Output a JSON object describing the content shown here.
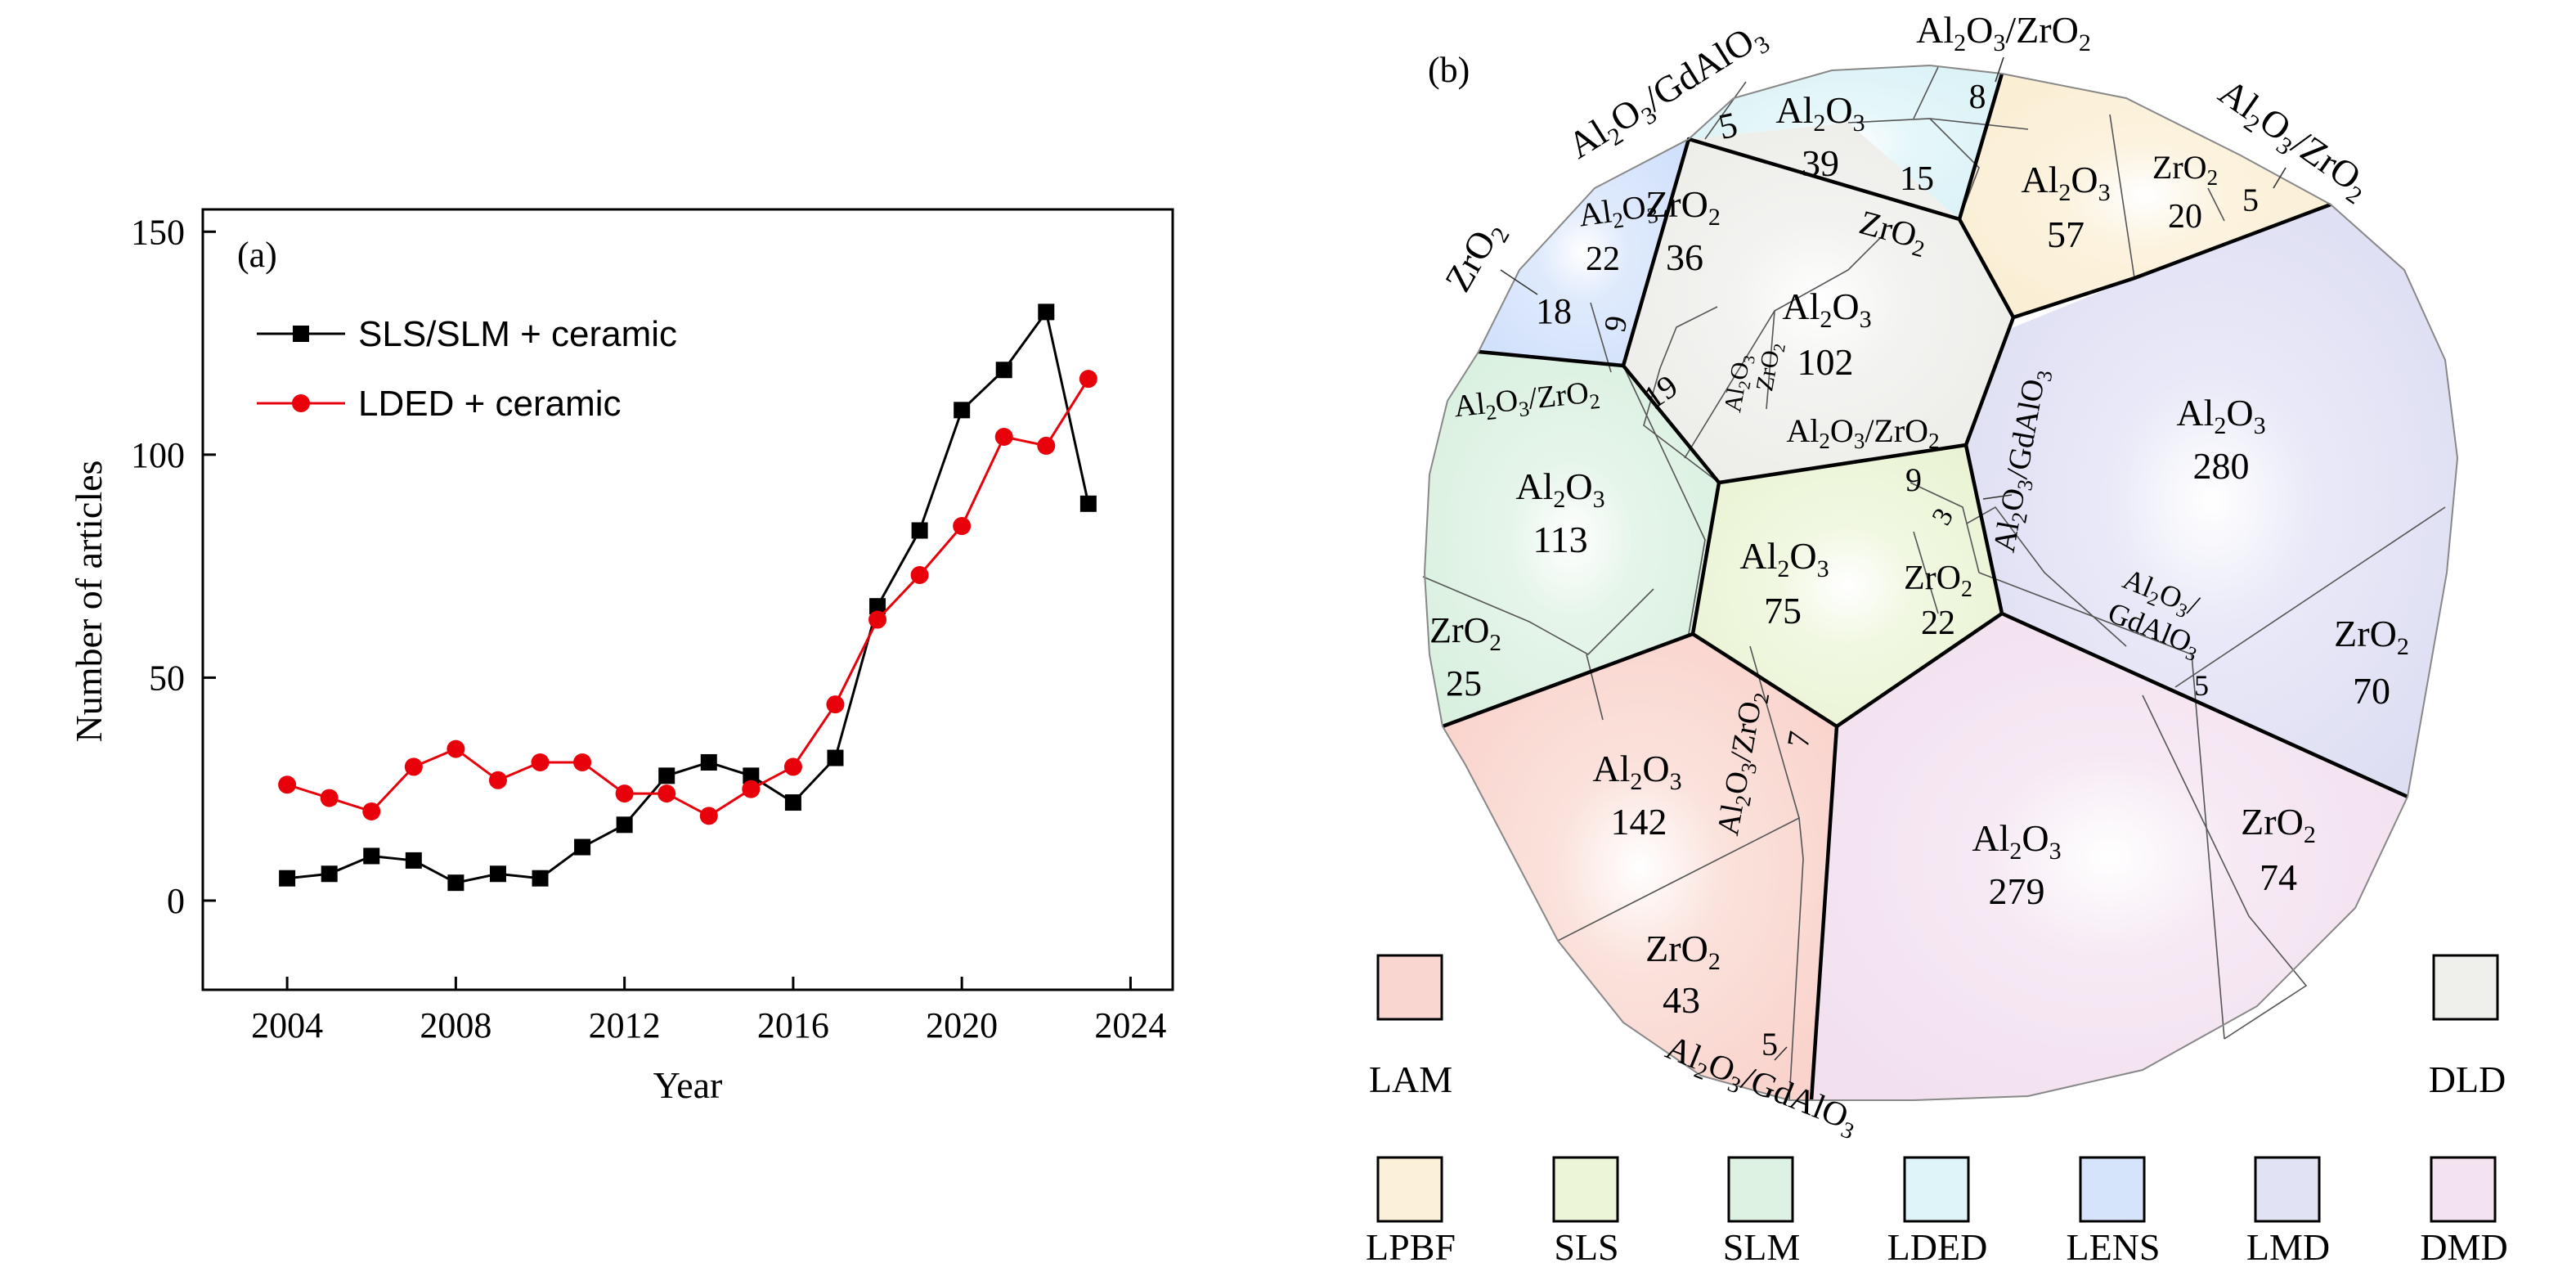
{
  "figure_a": {
    "panel_label": "(a)",
    "chart_data": {
      "type": "line",
      "title": "",
      "xlabel": "Year",
      "ylabel": "Number of articles",
      "xlim": [
        2002,
        2025
      ],
      "ylim": [
        -20,
        155
      ],
      "xticks": [
        2004,
        2008,
        2012,
        2016,
        2020,
        2024
      ],
      "yticks": [
        0,
        50,
        100,
        150
      ],
      "legend_position": "top-left",
      "x": [
        2004,
        2005,
        2006,
        2007,
        2008,
        2009,
        2010,
        2011,
        2012,
        2013,
        2014,
        2015,
        2016,
        2017,
        2018,
        2019,
        2020,
        2021,
        2022,
        2023
      ],
      "series": [
        {
          "name": "SLS/SLM + ceramic",
          "marker": "square",
          "color": "#000000",
          "values": [
            5,
            6,
            10,
            9,
            4,
            6,
            5,
            12,
            17,
            28,
            31,
            28,
            22,
            32,
            66,
            83,
            110,
            119,
            132,
            89
          ]
        },
        {
          "name": "LDED + ceramic",
          "marker": "circle",
          "color": "#e8000b",
          "values": [
            26,
            23,
            20,
            30,
            34,
            27,
            31,
            31,
            24,
            24,
            19,
            25,
            30,
            44,
            63,
            73,
            84,
            104,
            102,
            117
          ]
        }
      ]
    }
  },
  "figure_b": {
    "panel_label": "(b)",
    "chart_data": {
      "type": "voronoi-treemap",
      "groups": [
        {
          "name": "LAM",
          "color": "#f9d6d0",
          "cells": [
            {
              "material": "Al2O3",
              "count": 142
            },
            {
              "material": "ZrO2",
              "count": 43
            },
            {
              "material": "Al2O3/GdAlO3",
              "count": 5
            },
            {
              "material": "Al2O3/ZrO2",
              "count": 7
            }
          ]
        },
        {
          "name": "DMD",
          "color": "#f3e3f1",
          "cells": [
            {
              "material": "Al2O3",
              "count": 279
            },
            {
              "material": "ZrO2",
              "count": 74
            }
          ]
        },
        {
          "name": "LMD",
          "color": "#e2e2f5",
          "cells": [
            {
              "material": "Al2O3",
              "count": 280
            },
            {
              "material": "ZrO2",
              "count": 70
            },
            {
              "material": "Al2O3/GdAlO3",
              "count": 5
            },
            {
              "material": "Al2O3/GdAlO3",
              "count": 3
            }
          ]
        },
        {
          "name": "SLS",
          "color": "#ecf5d8",
          "cells": [
            {
              "material": "Al2O3",
              "count": 75
            },
            {
              "material": "ZrO2",
              "count": 22
            },
            {
              "material": "Al2O3/ZrO2",
              "count": 9
            }
          ]
        },
        {
          "name": "SLM",
          "color": "#def2e3",
          "cells": [
            {
              "material": "Al2O3",
              "count": 113
            },
            {
              "material": "ZrO2",
              "count": 25
            },
            {
              "material": "Al2O3/ZrO2",
              "count": 19
            }
          ]
        },
        {
          "name": "DLD",
          "color": "#efefec",
          "cells": [
            {
              "material": "Al2O3",
              "count": 102
            },
            {
              "material": "ZrO2",
              "count": 36
            },
            {
              "material": "Al2O3/ZrO2",
              "count": 15
            }
          ]
        },
        {
          "name": "LENS",
          "color": "#d6e4fb",
          "cells": [
            {
              "material": "Al2O3",
              "count": 22
            },
            {
              "material": "ZrO2",
              "count": 18
            },
            {
              "material": "Al2O3/ZrO2",
              "count": 9
            }
          ]
        },
        {
          "name": "LDED",
          "color": "#dff4f8",
          "cells": [
            {
              "material": "Al2O3",
              "count": 39
            },
            {
              "material": "Al2O3/GdAlO3",
              "count": 5
            },
            {
              "material": "Al2O3/ZrO2",
              "count": 8
            }
          ]
        },
        {
          "name": "LPBF",
          "color": "#fbf0d8",
          "cells": [
            {
              "material": "Al2O3",
              "count": 57
            },
            {
              "material": "ZrO2",
              "count": 20
            },
            {
              "material": "Al2O3/ZrO2",
              "count": 5
            }
          ]
        }
      ],
      "legend": [
        {
          "name": "LAM",
          "color": "#f9d6d0"
        },
        {
          "name": "DLD",
          "color": "#efefec"
        },
        {
          "name": "LPBF",
          "color": "#fbf0d8"
        },
        {
          "name": "SLS",
          "color": "#ecf5d8"
        },
        {
          "name": "SLM",
          "color": "#def2e3"
        },
        {
          "name": "LDED",
          "color": "#dff4f8"
        },
        {
          "name": "LENS",
          "color": "#d6e4fb"
        },
        {
          "name": "LMD",
          "color": "#e2e2f5"
        },
        {
          "name": "DMD",
          "color": "#f3e3f1"
        }
      ]
    }
  }
}
